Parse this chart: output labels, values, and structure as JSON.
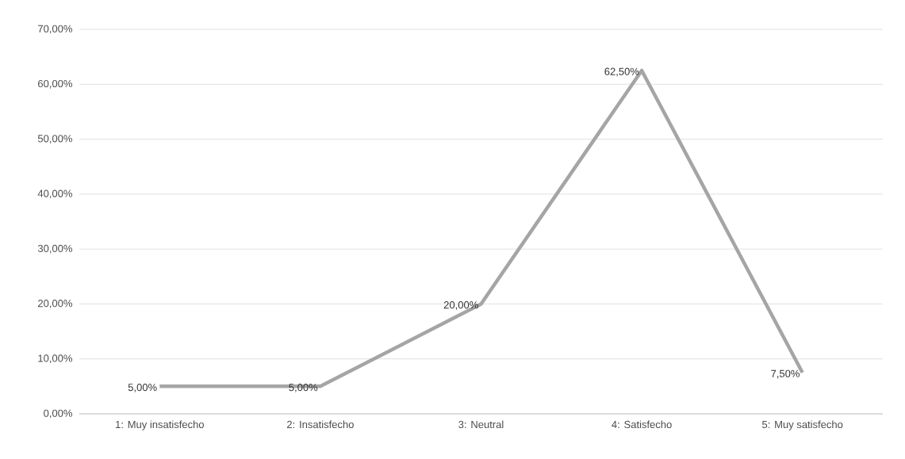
{
  "chart_data": {
    "type": "line",
    "categories": [
      "1: Muy insatisfecho",
      "2: Insatisfecho",
      "3: Neutral",
      "4: Satisfecho",
      "5: Muy satisfecho"
    ],
    "values": [
      5,
      5,
      20,
      62.5,
      7.5
    ],
    "value_labels": [
      "5,00%",
      "5,00%",
      "20,00%",
      "62,50%",
      "7,50%"
    ],
    "color": "#a5a5a5",
    "ylim": [
      0,
      70
    ],
    "yticks": [
      {
        "value": 0,
        "label": "0,00%"
      },
      {
        "value": 10,
        "label": "10,00%"
      },
      {
        "value": 20,
        "label": "20,00%"
      },
      {
        "value": 30,
        "label": "30,00%"
      },
      {
        "value": 40,
        "label": "40,00%"
      },
      {
        "value": 50,
        "label": "50,00%"
      },
      {
        "value": 60,
        "label": "60,00%"
      },
      {
        "value": 70,
        "label": "70,00%"
      }
    ],
    "grid": "y",
    "marker": "none",
    "line_style": "solid"
  }
}
